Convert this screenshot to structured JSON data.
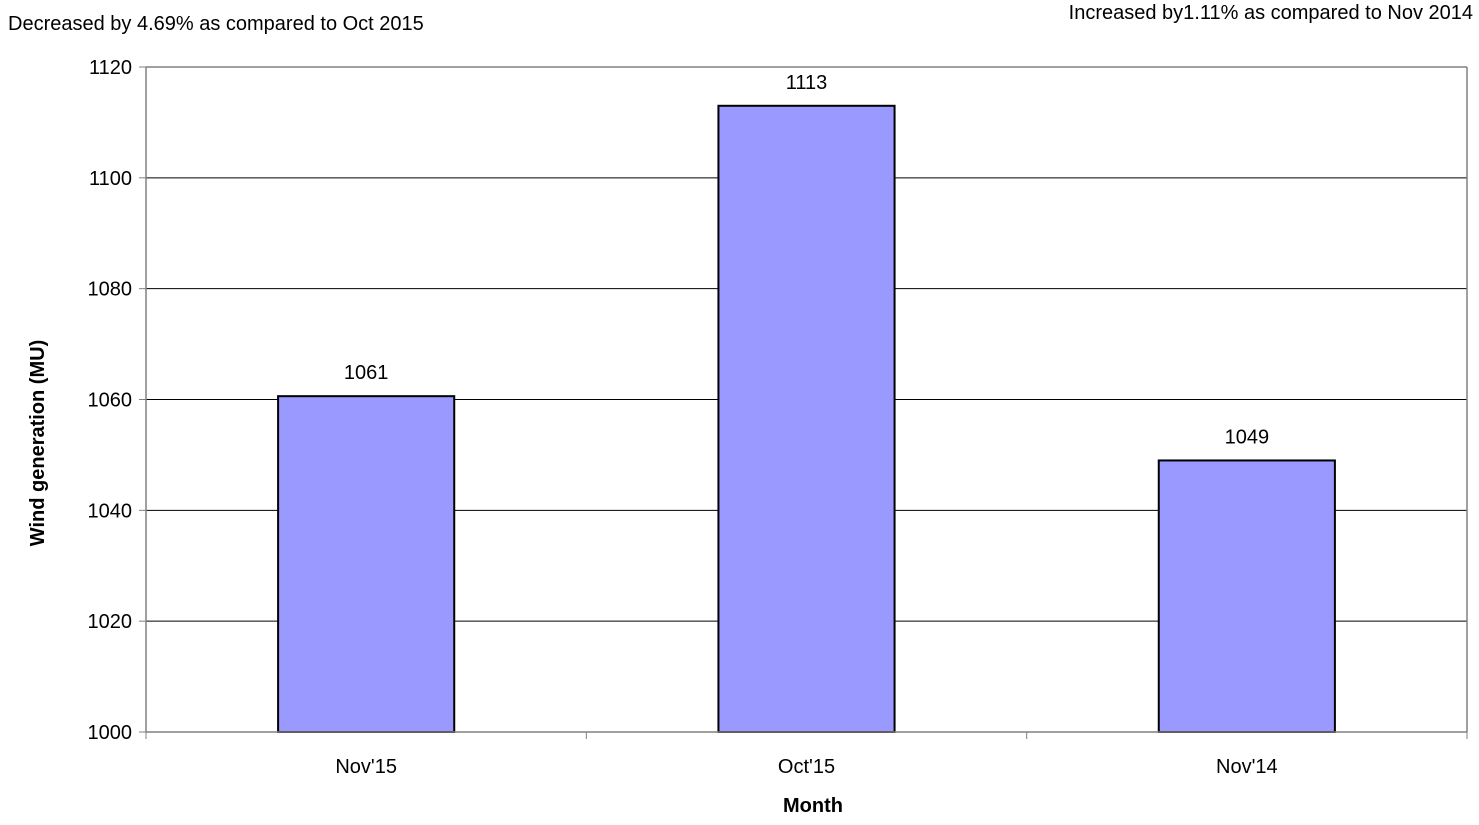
{
  "annotations": {
    "left": "Decreased by 4.69% as compared to Oct 2015",
    "right": "Increased  by1.11% as compared to Nov 2014"
  },
  "chart_data": {
    "type": "bar",
    "title": "",
    "xlabel": "Month",
    "ylabel": "Wind generation (MU)",
    "categories": [
      "Nov'15",
      "Oct'15",
      "Nov'14"
    ],
    "values": [
      1060.6,
      1113,
      1049
    ],
    "data_labels": [
      "1061",
      "1113",
      "1049"
    ],
    "ylim": [
      1000,
      1120
    ],
    "yticks": [
      1000,
      1020,
      1040,
      1060,
      1080,
      1100,
      1120
    ],
    "grid": true,
    "legend": "none",
    "colors": {
      "bar_fill": "#9999FF",
      "bar_stroke": "#000000",
      "gridline": "#000000",
      "axis": "#808080"
    }
  }
}
